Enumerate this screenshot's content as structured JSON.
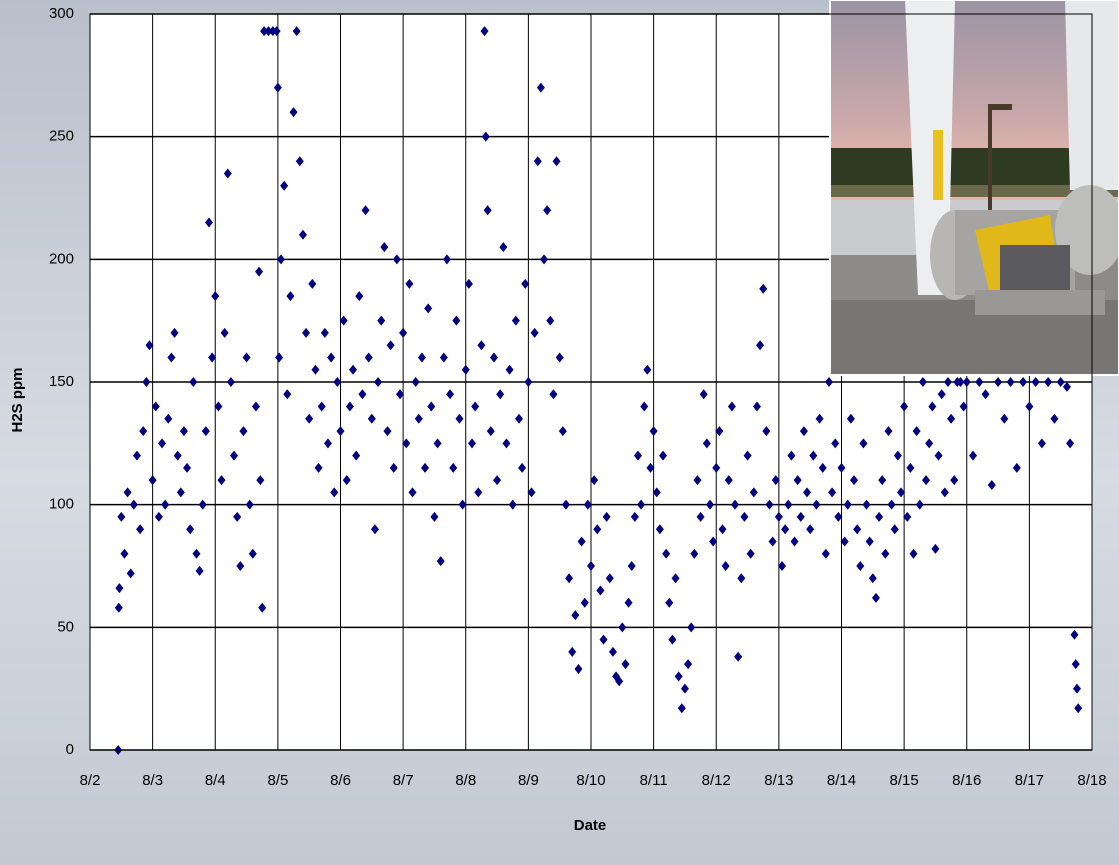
{
  "chart_data": {
    "type": "scatter",
    "xlabel": "Date",
    "ylabel": "H2S ppm",
    "color": "#000080",
    "marker": "diamond",
    "grid": true,
    "xlim": [
      2,
      18
    ],
    "xticks": [
      {
        "value": 2,
        "label": "8/2"
      },
      {
        "value": 3,
        "label": "8/3"
      },
      {
        "value": 4,
        "label": "8/4"
      },
      {
        "value": 5,
        "label": "8/5"
      },
      {
        "value": 6,
        "label": "8/6"
      },
      {
        "value": 7,
        "label": "8/7"
      },
      {
        "value": 8,
        "label": "8/8"
      },
      {
        "value": 9,
        "label": "8/9"
      },
      {
        "value": 10,
        "label": "8/10"
      },
      {
        "value": 11,
        "label": "8/11"
      },
      {
        "value": 12,
        "label": "8/12"
      },
      {
        "value": 13,
        "label": "8/13"
      },
      {
        "value": 14,
        "label": "8/14"
      },
      {
        "value": 15,
        "label": "8/15"
      },
      {
        "value": 16,
        "label": "8/16"
      },
      {
        "value": 17,
        "label": "8/17"
      },
      {
        "value": 18,
        "label": "8/18"
      }
    ],
    "ylim": [
      0,
      300
    ],
    "yticks": [
      0,
      50,
      100,
      150,
      200,
      250,
      300
    ],
    "x": [
      2.45,
      2.46,
      2.47,
      2.5,
      2.55,
      2.6,
      2.65,
      2.7,
      2.75,
      2.8,
      2.85,
      2.9,
      2.95,
      3.0,
      3.05,
      3.1,
      3.15,
      3.2,
      3.25,
      3.3,
      3.35,
      3.4,
      3.45,
      3.5,
      3.55,
      3.6,
      3.65,
      3.7,
      3.75,
      3.8,
      3.85,
      3.9,
      3.95,
      4.0,
      4.05,
      4.1,
      4.15,
      4.2,
      4.25,
      4.3,
      4.35,
      4.4,
      4.45,
      4.5,
      4.55,
      4.6,
      4.65,
      4.7,
      4.72,
      4.75,
      4.78,
      4.85,
      4.92,
      4.98,
      5.0,
      5.02,
      5.05,
      5.1,
      5.15,
      5.2,
      5.25,
      5.3,
      5.35,
      5.4,
      5.45,
      5.5,
      5.55,
      5.6,
      5.65,
      5.7,
      5.75,
      5.8,
      5.85,
      5.9,
      5.95,
      6.0,
      6.05,
      6.1,
      6.15,
      6.2,
      6.25,
      6.3,
      6.35,
      6.4,
      6.45,
      6.5,
      6.55,
      6.6,
      6.65,
      6.7,
      6.75,
      6.8,
      6.85,
      6.9,
      6.95,
      7.0,
      7.05,
      7.1,
      7.15,
      7.2,
      7.25,
      7.3,
      7.35,
      7.4,
      7.45,
      7.5,
      7.55,
      7.6,
      7.65,
      7.7,
      7.75,
      7.8,
      7.85,
      7.9,
      7.95,
      8.0,
      8.05,
      8.1,
      8.15,
      8.2,
      8.25,
      8.3,
      8.32,
      8.35,
      8.4,
      8.45,
      8.5,
      8.55,
      8.6,
      8.65,
      8.7,
      8.75,
      8.8,
      8.85,
      8.9,
      8.95,
      9.0,
      9.05,
      9.1,
      9.15,
      9.2,
      9.25,
      9.3,
      9.35,
      9.4,
      9.45,
      9.5,
      9.55,
      9.6,
      9.65,
      9.7,
      9.75,
      9.8,
      9.85,
      9.9,
      9.95,
      10.0,
      10.05,
      10.1,
      10.15,
      10.2,
      10.25,
      10.3,
      10.35,
      10.4,
      10.45,
      10.5,
      10.55,
      10.6,
      10.65,
      10.7,
      10.75,
      10.8,
      10.85,
      10.9,
      10.95,
      11.0,
      11.05,
      11.1,
      11.15,
      11.2,
      11.25,
      11.3,
      11.35,
      11.4,
      11.45,
      11.5,
      11.55,
      11.6,
      11.65,
      11.7,
      11.75,
      11.8,
      11.85,
      11.9,
      11.95,
      12.0,
      12.05,
      12.1,
      12.15,
      12.2,
      12.25,
      12.3,
      12.35,
      12.4,
      12.45,
      12.5,
      12.55,
      12.6,
      12.65,
      12.7,
      12.75,
      12.8,
      12.85,
      12.9,
      12.95,
      13.0,
      13.05,
      13.1,
      13.15,
      13.2,
      13.25,
      13.3,
      13.35,
      13.4,
      13.45,
      13.5,
      13.55,
      13.6,
      13.65,
      13.7,
      13.75,
      13.8,
      13.85,
      13.9,
      13.95,
      14.0,
      14.05,
      14.1,
      14.15,
      14.2,
      14.25,
      14.3,
      14.35,
      14.4,
      14.45,
      14.5,
      14.55,
      14.6,
      14.65,
      14.7,
      14.75,
      14.8,
      14.85,
      14.9,
      14.95,
      15.0,
      15.05,
      15.1,
      15.15,
      15.2,
      15.25,
      15.3,
      15.35,
      15.4,
      15.45,
      15.5,
      15.55,
      15.6,
      15.65,
      15.7,
      15.75,
      15.8,
      15.85,
      15.9,
      15.95,
      16.0,
      16.1,
      16.2,
      16.3,
      16.4,
      16.5,
      16.6,
      16.7,
      16.8,
      16.9,
      17.0,
      17.1,
      17.2,
      17.3,
      17.4,
      17.5,
      17.6,
      17.65,
      17.72,
      17.74,
      17.76,
      17.78
    ],
    "values": [
      0,
      58,
      66,
      95,
      80,
      105,
      72,
      100,
      120,
      90,
      130,
      150,
      165,
      110,
      140,
      95,
      125,
      100,
      135,
      160,
      170,
      120,
      105,
      130,
      115,
      90,
      150,
      80,
      73,
      100,
      130,
      215,
      160,
      185,
      140,
      110,
      170,
      235,
      150,
      120,
      95,
      75,
      130,
      160,
      100,
      80,
      140,
      195,
      110,
      58,
      293,
      293,
      293,
      293,
      270,
      160,
      200,
      230,
      145,
      185,
      260,
      293,
      240,
      210,
      170,
      135,
      190,
      155,
      115,
      140,
      170,
      125,
      160,
      105,
      150,
      130,
      175,
      110,
      140,
      155,
      120,
      185,
      145,
      220,
      160,
      135,
      90,
      150,
      175,
      205,
      130,
      165,
      115,
      200,
      145,
      170,
      125,
      190,
      105,
      150,
      135,
      160,
      115,
      180,
      140,
      95,
      125,
      77,
      160,
      200,
      145,
      115,
      175,
      135,
      100,
      155,
      190,
      125,
      140,
      105,
      165,
      293,
      250,
      220,
      130,
      160,
      110,
      145,
      205,
      125,
      155,
      100,
      175,
      135,
      115,
      190,
      150,
      105,
      170,
      240,
      270,
      200,
      220,
      175,
      145,
      240,
      160,
      130,
      100,
      70,
      40,
      55,
      33,
      85,
      60,
      100,
      75,
      110,
      90,
      65,
      45,
      95,
      70,
      40,
      30,
      28,
      50,
      35,
      60,
      75,
      95,
      120,
      100,
      140,
      155,
      115,
      130,
      105,
      90,
      120,
      80,
      60,
      45,
      70,
      30,
      17,
      25,
      35,
      50,
      80,
      110,
      95,
      145,
      125,
      100,
      85,
      115,
      130,
      90,
      75,
      110,
      140,
      100,
      38,
      70,
      95,
      120,
      80,
      105,
      140,
      165,
      188,
      130,
      100,
      85,
      110,
      95,
      75,
      90,
      100,
      120,
      85,
      110,
      95,
      130,
      105,
      90,
      120,
      100,
      135,
      115,
      80,
      150,
      105,
      125,
      95,
      115,
      85,
      100,
      135,
      110,
      90,
      75,
      125,
      100,
      85,
      70,
      62,
      95,
      110,
      80,
      130,
      100,
      90,
      120,
      105,
      140,
      95,
      115,
      80,
      130,
      100,
      150,
      110,
      125,
      140,
      82,
      120,
      145,
      105,
      150,
      135,
      110,
      150,
      150,
      140,
      150,
      120,
      150,
      145,
      108,
      150,
      135,
      150,
      115,
      150,
      140,
      150,
      125,
      150,
      135,
      150,
      148,
      125,
      47,
      35,
      25,
      17
    ]
  }
}
